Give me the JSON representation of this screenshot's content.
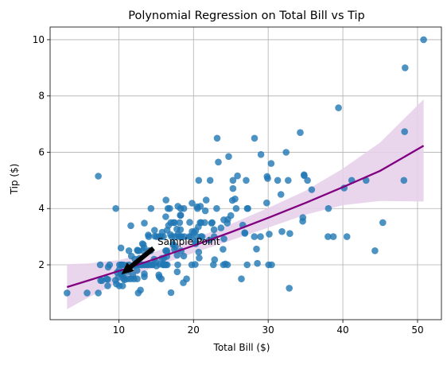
{
  "chart_data": {
    "type": "scatter",
    "title": "Polynomial Regression on Total Bill vs Tip",
    "xlabel": "Total Bill ($)",
    "ylabel": "Tip ($)",
    "xlim": [
      0.8,
      53.2
    ],
    "ylim": [
      0.05,
      10.45
    ],
    "xticks": [
      10,
      20,
      30,
      40,
      50
    ],
    "yticks": [
      2,
      4,
      6,
      8,
      10
    ],
    "grid": true,
    "colors": {
      "points": "#1f77b4",
      "fit_line": "#800080",
      "ci_band": "#e7d2ea",
      "grid": "#b0b0b0",
      "arrow": "#000000"
    },
    "series": [
      {
        "values": [
          [
            16.99,
            1.01
          ],
          [
            10.34,
            1.66
          ],
          [
            21.01,
            3.5
          ],
          [
            23.68,
            3.31
          ],
          [
            24.59,
            3.61
          ],
          [
            25.29,
            4.71
          ],
          [
            8.77,
            2.0
          ],
          [
            26.88,
            3.12
          ],
          [
            15.04,
            1.96
          ],
          [
            14.78,
            3.23
          ],
          [
            10.27,
            1.71
          ],
          [
            35.26,
            5.0
          ],
          [
            15.42,
            1.57
          ],
          [
            18.43,
            3.0
          ],
          [
            14.83,
            3.02
          ],
          [
            21.58,
            3.92
          ],
          [
            10.33,
            1.67
          ],
          [
            16.29,
            3.71
          ],
          [
            16.97,
            3.5
          ],
          [
            20.65,
            3.35
          ],
          [
            17.92,
            4.08
          ],
          [
            20.29,
            2.75
          ],
          [
            15.77,
            2.23
          ],
          [
            39.42,
            7.58
          ],
          [
            19.82,
            3.18
          ],
          [
            17.81,
            2.34
          ],
          [
            13.37,
            2.0
          ],
          [
            12.69,
            2.0
          ],
          [
            21.7,
            4.3
          ],
          [
            19.65,
            3.0
          ],
          [
            9.55,
            1.45
          ],
          [
            18.35,
            2.5
          ],
          [
            15.06,
            3.0
          ],
          [
            20.69,
            2.45
          ],
          [
            17.78,
            3.27
          ],
          [
            24.06,
            3.6
          ],
          [
            16.31,
            2.0
          ],
          [
            16.93,
            3.07
          ],
          [
            18.69,
            2.31
          ],
          [
            31.27,
            5.0
          ],
          [
            16.04,
            2.24
          ],
          [
            17.46,
            2.54
          ],
          [
            13.94,
            3.06
          ],
          [
            9.68,
            1.32
          ],
          [
            30.4,
            5.6
          ],
          [
            18.29,
            3.0
          ],
          [
            22.23,
            5.0
          ],
          [
            32.4,
            6.0
          ],
          [
            28.55,
            2.05
          ],
          [
            18.04,
            3.0
          ],
          [
            12.54,
            2.5
          ],
          [
            10.29,
            2.6
          ],
          [
            34.81,
            5.2
          ],
          [
            9.94,
            1.56
          ],
          [
            25.56,
            4.34
          ],
          [
            19.49,
            3.51
          ],
          [
            38.01,
            3.0
          ],
          [
            26.41,
            1.5
          ],
          [
            11.24,
            1.76
          ],
          [
            48.27,
            6.73
          ],
          [
            20.29,
            3.21
          ],
          [
            13.81,
            2.0
          ],
          [
            11.02,
            1.98
          ],
          [
            18.29,
            3.76
          ],
          [
            17.59,
            2.64
          ],
          [
            20.08,
            3.15
          ],
          [
            16.45,
            2.47
          ],
          [
            3.07,
            1.0
          ],
          [
            20.23,
            2.01
          ],
          [
            15.01,
            2.09
          ],
          [
            12.02,
            1.97
          ],
          [
            17.07,
            3.0
          ],
          [
            26.86,
            3.14
          ],
          [
            25.28,
            5.0
          ],
          [
            14.73,
            2.2
          ],
          [
            10.51,
            1.25
          ],
          [
            17.92,
            3.08
          ],
          [
            27.2,
            4.0
          ],
          [
            22.76,
            3.0
          ],
          [
            17.29,
            2.71
          ],
          [
            19.44,
            3.0
          ],
          [
            16.66,
            3.4
          ],
          [
            10.07,
            1.83
          ],
          [
            32.68,
            5.0
          ],
          [
            15.98,
            2.03
          ],
          [
            34.83,
            5.17
          ],
          [
            13.03,
            2.0
          ],
          [
            18.28,
            4.0
          ],
          [
            24.71,
            5.85
          ],
          [
            21.16,
            3.0
          ],
          [
            28.97,
            3.0
          ],
          [
            22.49,
            3.5
          ],
          [
            5.75,
            1.0
          ],
          [
            16.32,
            4.3
          ],
          [
            22.75,
            3.25
          ],
          [
            40.17,
            4.73
          ],
          [
            27.28,
            4.0
          ],
          [
            12.03,
            1.5
          ],
          [
            21.01,
            3.0
          ],
          [
            12.46,
            1.5
          ],
          [
            11.35,
            2.5
          ],
          [
            15.38,
            3.0
          ],
          [
            44.3,
            2.5
          ],
          [
            22.42,
            3.48
          ],
          [
            20.92,
            4.08
          ],
          [
            15.36,
            1.64
          ],
          [
            20.49,
            4.06
          ],
          [
            25.21,
            4.29
          ],
          [
            18.24,
            3.76
          ],
          [
            14.31,
            4.0
          ],
          [
            14.0,
            3.0
          ],
          [
            7.25,
            1.0
          ],
          [
            38.07,
            4.0
          ],
          [
            23.95,
            2.55
          ],
          [
            25.71,
            4.0
          ],
          [
            17.31,
            3.5
          ],
          [
            29.93,
            5.07
          ],
          [
            10.65,
            1.5
          ],
          [
            12.43,
            1.8
          ],
          [
            24.08,
            2.92
          ],
          [
            11.69,
            2.31
          ],
          [
            13.42,
            1.68
          ],
          [
            14.26,
            2.5
          ],
          [
            15.95,
            2.0
          ],
          [
            12.48,
            2.52
          ],
          [
            29.8,
            4.2
          ],
          [
            8.52,
            1.48
          ],
          [
            14.52,
            2.0
          ],
          [
            11.38,
            2.0
          ],
          [
            22.82,
            2.18
          ],
          [
            19.08,
            1.5
          ],
          [
            20.27,
            2.83
          ],
          [
            11.17,
            1.5
          ],
          [
            12.26,
            2.0
          ],
          [
            18.26,
            3.25
          ],
          [
            8.51,
            1.25
          ],
          [
            10.33,
            2.0
          ],
          [
            14.15,
            2.0
          ],
          [
            16.0,
            2.0
          ],
          [
            13.16,
            2.75
          ],
          [
            17.47,
            3.5
          ],
          [
            34.3,
            6.7
          ],
          [
            41.19,
            5.0
          ],
          [
            27.05,
            5.0
          ],
          [
            16.43,
            2.3
          ],
          [
            8.35,
            1.5
          ],
          [
            18.64,
            1.36
          ],
          [
            11.87,
            1.63
          ],
          [
            9.78,
            1.73
          ],
          [
            7.51,
            2.0
          ],
          [
            14.07,
            2.5
          ],
          [
            13.13,
            2.0
          ],
          [
            17.26,
            2.74
          ],
          [
            24.55,
            2.0
          ],
          [
            19.77,
            2.0
          ],
          [
            29.85,
            5.14
          ],
          [
            48.17,
            5.0
          ],
          [
            25.0,
            3.75
          ],
          [
            13.39,
            2.61
          ],
          [
            16.49,
            2.0
          ],
          [
            21.5,
            3.5
          ],
          [
            12.66,
            2.5
          ],
          [
            16.21,
            2.0
          ],
          [
            13.81,
            2.0
          ],
          [
            17.51,
            3.0
          ],
          [
            24.52,
            3.48
          ],
          [
            20.76,
            2.24
          ],
          [
            31.71,
            4.5
          ],
          [
            10.59,
            1.61
          ],
          [
            10.63,
            2.0
          ],
          [
            50.81,
            10.0
          ],
          [
            15.81,
            3.16
          ],
          [
            7.25,
            5.15
          ],
          [
            31.85,
            3.18
          ],
          [
            16.82,
            4.0
          ],
          [
            32.9,
            3.11
          ],
          [
            17.89,
            2.0
          ],
          [
            14.48,
            2.0
          ],
          [
            9.6,
            4.0
          ],
          [
            34.63,
            3.55
          ],
          [
            34.65,
            3.68
          ],
          [
            23.33,
            5.65
          ],
          [
            45.35,
            3.5
          ],
          [
            23.17,
            6.5
          ],
          [
            40.55,
            3.0
          ],
          [
            20.69,
            5.0
          ],
          [
            20.9,
            3.5
          ],
          [
            30.46,
            2.0
          ],
          [
            18.15,
            3.5
          ],
          [
            23.1,
            4.0
          ],
          [
            15.69,
            1.5
          ],
          [
            19.81,
            4.19
          ],
          [
            28.44,
            2.56
          ],
          [
            15.48,
            2.02
          ],
          [
            16.58,
            4.0
          ],
          [
            7.56,
            1.44
          ],
          [
            10.34,
            2.0
          ],
          [
            43.11,
            5.0
          ],
          [
            13.0,
            2.0
          ],
          [
            13.51,
            2.0
          ],
          [
            18.71,
            4.0
          ],
          [
            12.74,
            2.01
          ],
          [
            13.0,
            2.0
          ],
          [
            16.4,
            2.5
          ],
          [
            20.53,
            4.0
          ],
          [
            16.47,
            3.23
          ],
          [
            26.59,
            3.41
          ],
          [
            38.73,
            3.0
          ],
          [
            24.27,
            2.03
          ],
          [
            12.76,
            2.23
          ],
          [
            30.06,
            2.0
          ],
          [
            25.89,
            5.16
          ],
          [
            48.33,
            9.0
          ],
          [
            13.27,
            2.5
          ],
          [
            28.17,
            6.5
          ],
          [
            12.9,
            1.1
          ],
          [
            28.15,
            3.0
          ],
          [
            11.59,
            1.5
          ],
          [
            7.74,
            1.44
          ],
          [
            30.14,
            3.09
          ],
          [
            12.16,
            2.2
          ],
          [
            13.42,
            3.48
          ],
          [
            8.58,
            1.92
          ],
          [
            15.98,
            3.0
          ],
          [
            13.42,
            1.58
          ],
          [
            16.27,
            2.5
          ],
          [
            10.09,
            2.0
          ],
          [
            20.45,
            3.0
          ],
          [
            13.28,
            2.72
          ],
          [
            22.12,
            2.88
          ],
          [
            24.01,
            2.0
          ],
          [
            15.69,
            3.0
          ],
          [
            11.61,
            3.39
          ],
          [
            10.77,
            1.47
          ],
          [
            15.53,
            3.0
          ],
          [
            10.07,
            1.25
          ],
          [
            12.6,
            1.0
          ],
          [
            32.83,
            1.17
          ],
          [
            35.83,
            4.67
          ],
          [
            29.03,
            5.92
          ],
          [
            27.18,
            2.0
          ],
          [
            22.67,
            2.0
          ],
          [
            17.82,
            1.75
          ],
          [
            18.78,
            3.0
          ]
        ]
      }
    ],
    "fit_line": {
      "x": [
        3.07,
        6,
        10,
        15,
        20,
        25,
        30,
        35,
        40,
        45,
        50.81
      ],
      "y": [
        1.21,
        1.45,
        1.78,
        2.22,
        2.68,
        3.16,
        3.67,
        4.2,
        4.76,
        5.34,
        6.23
      ]
    },
    "ci_band": {
      "x": [
        3.07,
        6,
        10,
        15,
        20,
        25,
        30,
        35,
        40,
        45,
        50.81
      ],
      "lower": [
        0.42,
        0.85,
        1.38,
        1.95,
        2.42,
        2.87,
        3.32,
        3.78,
        4.12,
        4.27,
        4.25
      ],
      "upper": [
        2.02,
        2.05,
        2.17,
        2.48,
        2.92,
        3.45,
        4.02,
        4.63,
        5.42,
        6.35,
        7.88
      ]
    },
    "annotation": {
      "text": "Sample Point",
      "xy": [
        10.34,
        1.66
      ],
      "xytext": [
        15.5,
        2.7
      ]
    }
  }
}
